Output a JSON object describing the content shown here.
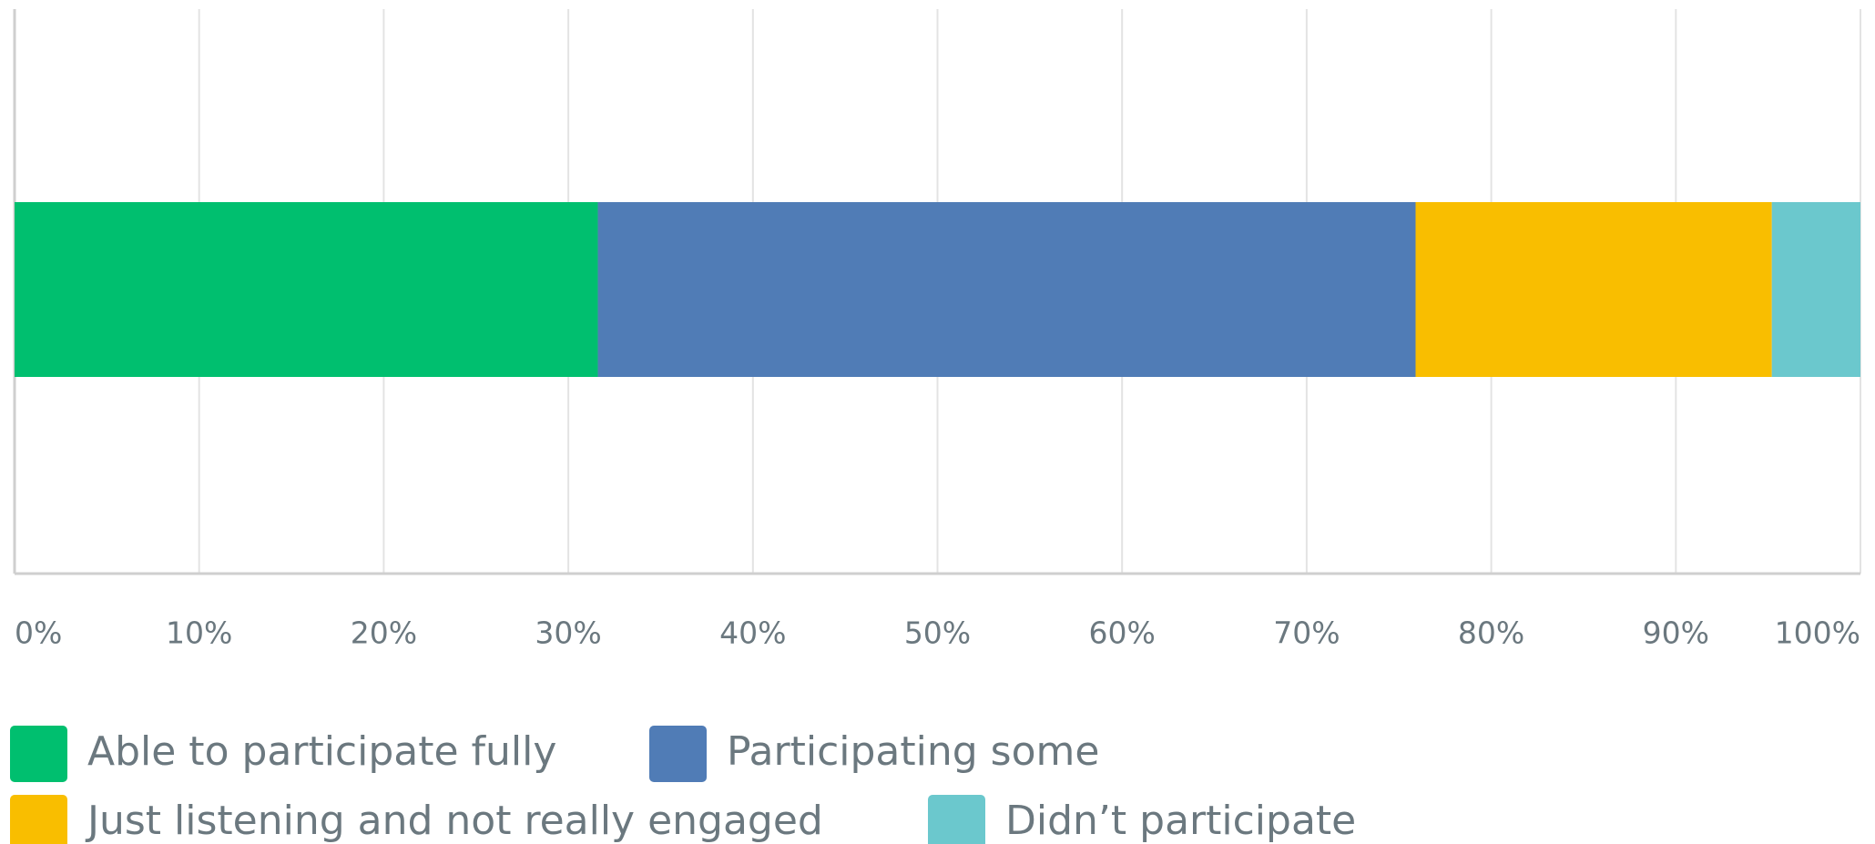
{
  "chart_data": {
    "type": "stacked_bar_horizontal",
    "categories": [
      null
    ],
    "series": [
      {
        "name": "Able to participate fully",
        "color": "#00bf6f",
        "values": [
          31.6
        ]
      },
      {
        "name": "Participating some",
        "color": "#507cb6",
        "values": [
          44.3
        ]
      },
      {
        "name": "Just listening and not really engaged",
        "color": "#f9be00",
        "values": [
          19.3
        ]
      },
      {
        "name": "Didn’t participate",
        "color": "#6bc8cd",
        "values": [
          4.8
        ]
      }
    ],
    "xlim": [
      0,
      100
    ],
    "xticks": [
      {
        "value": 0,
        "label": "0%"
      },
      {
        "value": 10,
        "label": "10%"
      },
      {
        "value": 20,
        "label": "20%"
      },
      {
        "value": 30,
        "label": "30%"
      },
      {
        "value": 40,
        "label": "40%"
      },
      {
        "value": 50,
        "label": "50%"
      },
      {
        "value": 60,
        "label": "60%"
      },
      {
        "value": 70,
        "label": "70%"
      },
      {
        "value": 80,
        "label": "80%"
      },
      {
        "value": 90,
        "label": "90%"
      },
      {
        "value": 100,
        "label": "100%"
      }
    ],
    "grid": true
  }
}
